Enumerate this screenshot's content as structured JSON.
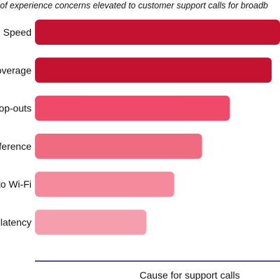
{
  "chart_data": {
    "type": "bar",
    "orientation": "horizontal",
    "title": "of experience concerns elevated to customer support calls for broadb",
    "xlabel": "Cause for support calls",
    "ylabel": "",
    "categories": [
      "Speed",
      "overage",
      "op-outs",
      "ference",
      "to Wi-Fi",
      "latency"
    ],
    "values": [
      88,
      85,
      70,
      60,
      50,
      40
    ],
    "xlim": [
      0,
      88
    ],
    "colors": [
      "#c41230",
      "#c41230",
      "#ef4a6a",
      "#f06a80",
      "#f48a9c",
      "#f59fae"
    ],
    "axis_color": "#1a1a7a",
    "grid": false
  }
}
